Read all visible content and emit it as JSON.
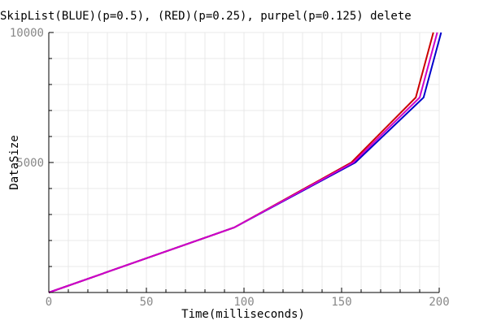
{
  "chart_data": {
    "type": "line",
    "title": "SkipList(BLUE)(p=0.5), (RED)(p=0.25), purpel(p=0.125) delete",
    "xlabel": "Time(milliseconds)",
    "ylabel": "DataSize",
    "xlim": [
      0,
      200
    ],
    "ylim": [
      0,
      10000
    ],
    "xticks": [
      0,
      50,
      100,
      150,
      200
    ],
    "yticks": [
      5000,
      10000
    ],
    "x_minor_step": 10,
    "y_minor_step": 1000,
    "grid": true,
    "series": [
      {
        "color": "#0000cc",
        "points": [
          [
            0,
            0
          ],
          [
            95,
            2500
          ],
          [
            157,
            5000
          ],
          [
            192,
            7500
          ],
          [
            201,
            10000
          ]
        ]
      },
      {
        "color": "#cc0000",
        "points": [
          [
            0,
            0
          ],
          [
            95,
            2500
          ],
          [
            155,
            5000
          ],
          [
            188,
            7500
          ],
          [
            197,
            10000
          ]
        ]
      },
      {
        "color": "#cc00cc",
        "points": [
          [
            0,
            0
          ],
          [
            95,
            2500
          ],
          [
            156,
            5000
          ],
          [
            190,
            7500
          ],
          [
            199,
            10000
          ]
        ]
      }
    ]
  }
}
